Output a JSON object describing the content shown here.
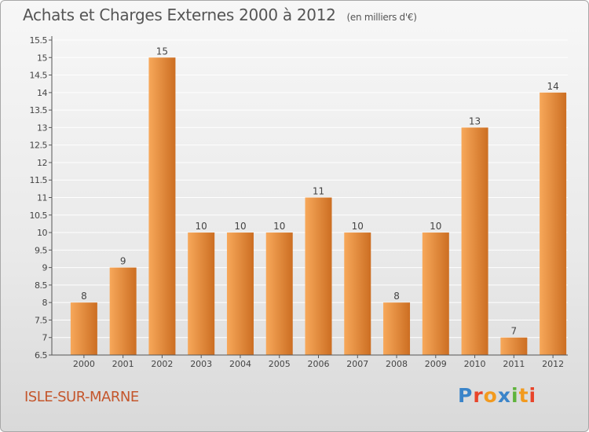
{
  "header": {
    "title": "Achats et Charges Externes 2000 à 2012",
    "unit": "(en milliers d'€)"
  },
  "footer": {
    "commune": "ISLE-SUR-MARNE",
    "brand_letters": [
      "P",
      "r",
      "o",
      "x",
      "i",
      "t",
      "i"
    ],
    "brand_colors": [
      "#3a84c9",
      "#e8442a",
      "#f29a1e",
      "#3a84c9",
      "#5eb33c",
      "#f29a1e",
      "#e8442a"
    ]
  },
  "colors": {
    "bar_light": "#f7a85a",
    "bar_dark": "#cc6e22",
    "axis": "#555555",
    "grid": "#ffffff"
  },
  "chart_data": {
    "type": "bar",
    "title": "Achats et Charges Externes 2000 à 2012",
    "xlabel": "",
    "ylabel": "",
    "categories": [
      "2000",
      "2001",
      "2002",
      "2003",
      "2004",
      "2005",
      "2006",
      "2007",
      "2008",
      "2009",
      "2010",
      "2011",
      "2012"
    ],
    "values": [
      8,
      9,
      15,
      10,
      10,
      10,
      11,
      10,
      8,
      10,
      13,
      7,
      14
    ],
    "data_labels": [
      "8",
      "9",
      "15",
      "10",
      "10",
      "10",
      "11",
      "10",
      "8",
      "10",
      "13",
      "7",
      "14"
    ],
    "ylim": [
      6.5,
      15.5
    ],
    "yticks": [
      "6.5",
      "7",
      "7.5",
      "8",
      "8.5",
      "9",
      "9.5",
      "10",
      "10.5",
      "11",
      "11.5",
      "12",
      "12.5",
      "13",
      "13.5",
      "14",
      "14.5",
      "15",
      "15.5"
    ],
    "grid": true,
    "legend": "none"
  }
}
